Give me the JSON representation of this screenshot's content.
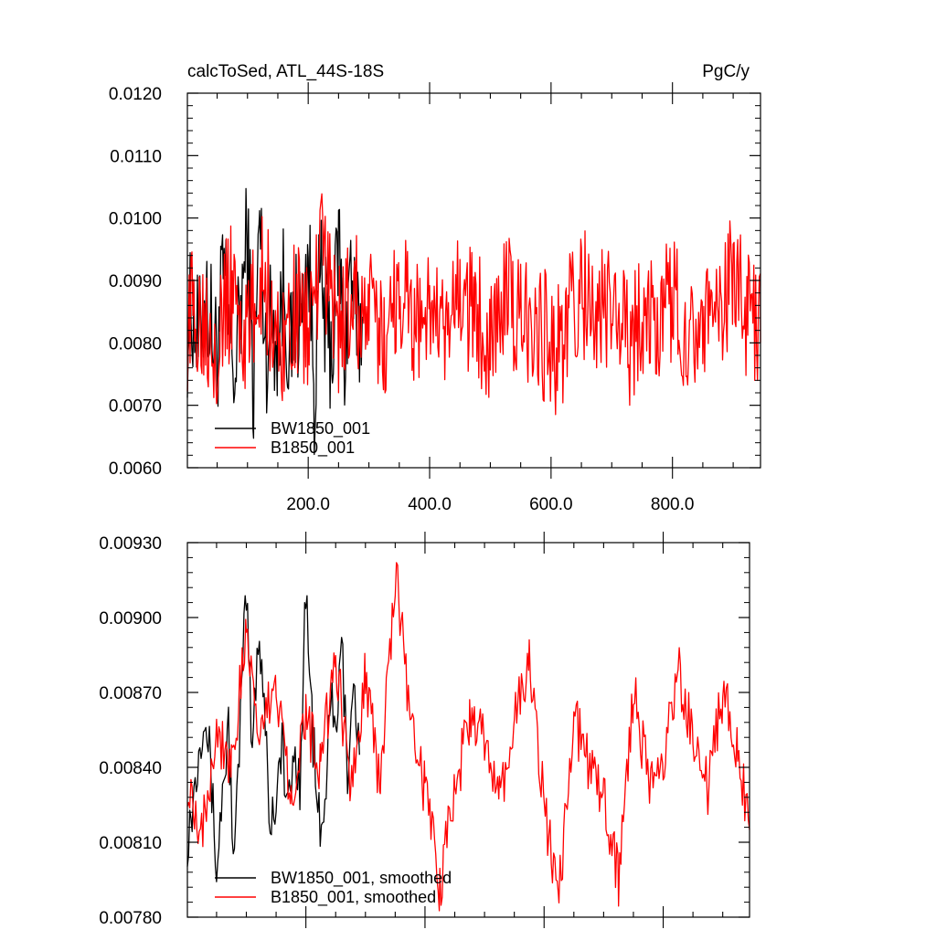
{
  "chart_data": [
    {
      "type": "line",
      "title_left": "calcToSed, ATL_44S-18S",
      "title_right": "PgC/y",
      "xlim": [
        1,
        945
      ],
      "ylim": [
        0.006,
        0.012
      ],
      "y_ticks": [
        0.006,
        0.007,
        0.008,
        0.009,
        0.01,
        0.011,
        0.012
      ],
      "y_tick_labels": [
        "0.0060",
        "0.0070",
        "0.0080",
        "0.0090",
        "0.0100",
        "0.0110",
        "0.0120"
      ],
      "x_ticks": [
        200,
        400,
        600,
        800
      ],
      "x_tick_labels": [
        "200.0",
        "400.0",
        "600.0",
        "800.0"
      ],
      "legend": "bottom-left",
      "series": [
        {
          "name": "BW1850_001",
          "color": "#000000",
          "x": [
            1,
            10,
            20,
            30,
            40,
            50,
            60,
            70,
            80,
            90,
            100,
            110,
            120,
            130,
            140,
            150,
            160,
            170,
            180,
            190,
            200,
            210,
            220,
            230,
            240,
            250,
            260,
            270,
            280,
            290
          ],
          "values": [
            0.0082,
            0.0086,
            0.0079,
            0.0088,
            0.0083,
            0.0078,
            0.0091,
            0.008,
            0.0075,
            0.0087,
            0.0097,
            0.0072,
            0.01,
            0.0079,
            0.0084,
            0.0081,
            0.009,
            0.0077,
            0.0085,
            0.0083,
            0.0095,
            0.0073,
            0.0091,
            0.0082,
            0.0079,
            0.0097,
            0.0078,
            0.0093,
            0.008,
            0.0084
          ]
        },
        {
          "name": "B1850_001",
          "color": "#ff0000",
          "x": [
            1,
            25,
            50,
            75,
            100,
            125,
            150,
            175,
            200,
            225,
            250,
            275,
            300,
            325,
            350,
            375,
            400,
            425,
            450,
            475,
            500,
            525,
            550,
            575,
            600,
            625,
            650,
            675,
            700,
            725,
            750,
            775,
            800,
            825,
            850,
            875,
            900,
            925,
            945
          ],
          "values": [
            0.0083,
            0.0086,
            0.0081,
            0.0089,
            0.008,
            0.0092,
            0.0079,
            0.0085,
            0.0083,
            0.0094,
            0.0082,
            0.0087,
            0.0084,
            0.008,
            0.009,
            0.0083,
            0.0086,
            0.0079,
            0.0088,
            0.0084,
            0.0082,
            0.0087,
            0.0083,
            0.0085,
            0.0078,
            0.0082,
            0.0089,
            0.0083,
            0.0086,
            0.008,
            0.0085,
            0.0083,
            0.0087,
            0.0082,
            0.0085,
            0.0081,
            0.0092,
            0.0084,
            0.008
          ]
        }
      ]
    },
    {
      "type": "line",
      "xlim": [
        1,
        945
      ],
      "ylim": [
        0.0078,
        0.0093
      ],
      "y_ticks": [
        0.0078,
        0.0081,
        0.0084,
        0.0087,
        0.009,
        0.0093
      ],
      "y_tick_labels": [
        "0.00780",
        "0.00810",
        "0.00840",
        "0.00870",
        "0.00900",
        "0.00930"
      ],
      "x_ticks": [
        200,
        400,
        600,
        800
      ],
      "legend": "bottom-left",
      "series": [
        {
          "name": "BW1850_001, smoothed",
          "color": "#000000",
          "x": [
            1,
            10,
            20,
            30,
            40,
            50,
            60,
            70,
            80,
            90,
            100,
            110,
            120,
            130,
            140,
            150,
            160,
            170,
            180,
            190,
            200,
            210,
            220,
            230,
            240,
            250,
            260,
            270,
            280,
            290
          ],
          "values": [
            0.00812,
            0.00825,
            0.00848,
            0.00866,
            0.0084,
            0.00798,
            0.0083,
            0.00855,
            0.008,
            0.0086,
            0.0091,
            0.00845,
            0.00895,
            0.0087,
            0.00815,
            0.0083,
            0.0085,
            0.0082,
            0.00845,
            0.00835,
            0.00912,
            0.0086,
            0.0082,
            0.00812,
            0.0087,
            0.0085,
            0.0089,
            0.0084,
            0.00875,
            0.00845
          ]
        },
        {
          "name": "B1850_001, smoothed",
          "color": "#ff0000",
          "x": [
            1,
            25,
            50,
            75,
            100,
            125,
            150,
            175,
            200,
            225,
            250,
            275,
            300,
            325,
            350,
            375,
            400,
            425,
            450,
            475,
            500,
            525,
            550,
            575,
            600,
            625,
            650,
            675,
            700,
            725,
            750,
            775,
            800,
            825,
            850,
            875,
            900,
            925,
            945
          ],
          "values": [
            0.00836,
            0.00815,
            0.00855,
            0.00842,
            0.0089,
            0.00852,
            0.00875,
            0.0083,
            0.0086,
            0.0084,
            0.00885,
            0.0083,
            0.0088,
            0.0083,
            0.0092,
            0.0086,
            0.0083,
            0.00793,
            0.0083,
            0.0086,
            0.0085,
            0.00825,
            0.0086,
            0.0088,
            0.00825,
            0.0079,
            0.0086,
            0.0084,
            0.0083,
            0.00795,
            0.0087,
            0.00835,
            0.0084,
            0.0088,
            0.0085,
            0.0083,
            0.0087,
            0.00845,
            0.00815
          ]
        }
      ]
    }
  ]
}
